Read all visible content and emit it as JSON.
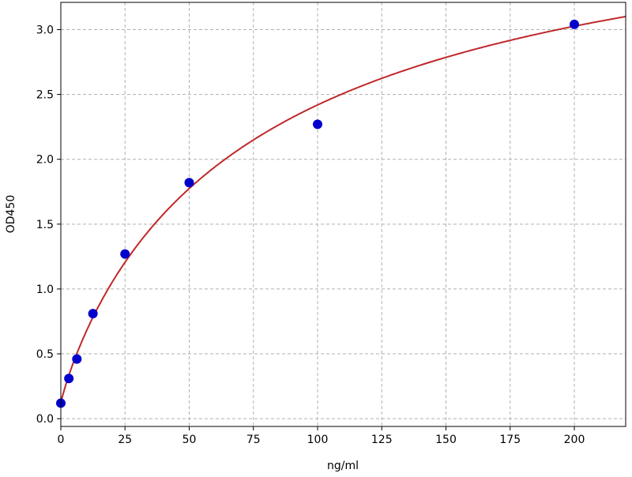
{
  "chart_data": {
    "type": "scatter",
    "title": "",
    "xlabel": "ng/ml",
    "ylabel": "OD450",
    "xlim": [
      0,
      220
    ],
    "ylim": [
      -0.06,
      3.21
    ],
    "grid": true,
    "x_ticks": [
      "0",
      "25",
      "50",
      "75",
      "100",
      "125",
      "150",
      "175",
      "200"
    ],
    "y_ticks": [
      "0.0",
      "0.5",
      "1.0",
      "1.5",
      "2.0",
      "2.5",
      "3.0"
    ],
    "series": [
      {
        "x": [
          0,
          3.125,
          6.25,
          12.5,
          25,
          50,
          100,
          200
        ],
        "y": [
          0.12,
          0.31,
          0.46,
          0.81,
          1.27,
          1.82,
          2.27,
          3.04
        ]
      }
    ],
    "fit_curve": true,
    "colors": {
      "points": "#0000cc",
      "curve": "#c0282a",
      "grid": "#b0b0b0"
    }
  }
}
